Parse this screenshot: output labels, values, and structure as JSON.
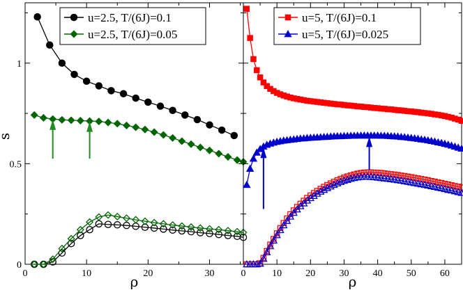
{
  "chart_data": [
    {
      "type": "line",
      "panel": "left",
      "xlabel": "ρ",
      "ylabel": "s",
      "xlim": [
        0,
        35.5
      ],
      "ylim": [
        0,
        1.3
      ],
      "xticks": [
        0,
        10,
        20,
        30
      ],
      "yticks": [
        0,
        0.5,
        1
      ],
      "ytick_labels": [
        "0",
        "0.5",
        "1"
      ],
      "legend_position": "top-right",
      "series": [
        {
          "name": "u=2.5, T/(6J)=0.1",
          "legend": true,
          "color": "#000000",
          "marker": "circle",
          "filled": true,
          "x": [
            2,
            4,
            6,
            8,
            10,
            12,
            14,
            16,
            18,
            20,
            22,
            24,
            26,
            28,
            30,
            32,
            34
          ],
          "y": [
            1.23,
            1.09,
            1.0,
            0.944,
            0.91,
            0.887,
            0.863,
            0.848,
            0.826,
            0.806,
            0.786,
            0.765,
            0.742,
            0.719,
            0.693,
            0.667,
            0.64
          ]
        },
        {
          "name": "u=2.5, T/(6J)=0.05",
          "legend": true,
          "color": "#006400",
          "marker": "diamond",
          "filled": true,
          "x": [
            1.5,
            3,
            4.5,
            6,
            7.5,
            9,
            10.5,
            12,
            13.5,
            15,
            16.5,
            18,
            19.5,
            21,
            22.5,
            24,
            25.5,
            27,
            28.5,
            30,
            31.5,
            33,
            34.5,
            35.5
          ],
          "y": [
            0.742,
            0.728,
            0.722,
            0.718,
            0.716,
            0.714,
            0.712,
            0.71,
            0.705,
            0.699,
            0.69,
            0.681,
            0.67,
            0.657,
            0.643,
            0.628,
            0.612,
            0.597,
            0.581,
            0.566,
            0.55,
            0.534,
            0.518,
            0.509
          ]
        },
        {
          "name": "u=2.5, T/(6J)=0.1 (open)",
          "legend": false,
          "color": "#000000",
          "marker": "circle",
          "filled": false,
          "x": [
            1.5,
            3,
            4.5,
            6,
            7.5,
            9,
            10.5,
            12,
            13.5,
            15,
            16.5,
            18,
            19.5,
            21,
            22.5,
            24,
            25.5,
            27,
            28.5,
            30,
            31.5,
            33,
            34.5,
            35.5
          ],
          "y": [
            0,
            0,
            0.012,
            0.056,
            0.103,
            0.143,
            0.172,
            0.201,
            0.198,
            0.196,
            0.193,
            0.189,
            0.184,
            0.18,
            0.175,
            0.17,
            0.166,
            0.162,
            0.157,
            0.153,
            0.148,
            0.143,
            0.139,
            0.134
          ]
        },
        {
          "name": "u=2.5, T/(6J)=0.05 (open)",
          "legend": false,
          "color": "#006400",
          "marker": "diamond",
          "filled": false,
          "x": [
            1.5,
            3,
            4.5,
            6,
            7.5,
            9,
            10.5,
            12,
            13.5,
            15,
            16.5,
            18,
            19.5,
            21,
            22.5,
            24,
            25.5,
            27,
            28.5,
            30,
            31.5,
            33,
            34.5,
            35.5
          ],
          "y": [
            0,
            0,
            0.025,
            0.078,
            0.127,
            0.172,
            0.21,
            0.235,
            0.245,
            0.237,
            0.229,
            0.221,
            0.214,
            0.207,
            0.201,
            0.195,
            0.19,
            0.185,
            0.18,
            0.176,
            0.172,
            0.167,
            0.162,
            0.158
          ]
        }
      ],
      "arrows": [
        {
          "color": "#228B22",
          "x": 4.5,
          "y_from": 0.525,
          "y_to": 0.72
        },
        {
          "color": "#228B22",
          "x": 10.5,
          "y_from": 0.525,
          "y_to": 0.71
        }
      ]
    },
    {
      "type": "line",
      "panel": "right",
      "xlabel": "ρ",
      "xlim": [
        0,
        65
      ],
      "ylim": [
        0,
        1.3
      ],
      "xticks": [
        0,
        10,
        20,
        30,
        40,
        50,
        60
      ],
      "legend_position": "top-left",
      "series": [
        {
          "name": "u=5, T/(6J)=0.1",
          "legend": true,
          "color": "#ff0000",
          "marker": "square",
          "filled": true,
          "x": [
            1,
            2,
            3,
            4,
            5,
            6,
            7,
            8,
            9,
            10,
            11,
            12,
            13,
            14,
            15,
            16,
            17,
            18,
            19,
            20,
            21,
            22,
            23,
            24,
            25,
            26,
            27,
            28,
            29,
            30,
            31,
            32,
            33,
            34,
            35,
            36,
            37,
            38,
            39,
            40,
            41,
            42,
            43,
            44,
            45,
            46,
            47,
            48,
            49,
            50,
            51,
            52,
            53,
            54,
            55,
            56,
            57,
            58,
            59,
            60,
            61,
            62,
            63,
            64,
            65
          ],
          "y": [
            1.27,
            1.125,
            1.02,
            0.965,
            0.929,
            0.904,
            0.886,
            0.872,
            0.861,
            0.852,
            0.845,
            0.839,
            0.834,
            0.829,
            0.825,
            0.822,
            0.819,
            0.816,
            0.813,
            0.811,
            0.809,
            0.807,
            0.805,
            0.803,
            0.801,
            0.799,
            0.797,
            0.795,
            0.794,
            0.792,
            0.79,
            0.789,
            0.787,
            0.785,
            0.784,
            0.782,
            0.781,
            0.779,
            0.777,
            0.776,
            0.774,
            0.773,
            0.771,
            0.77,
            0.768,
            0.766,
            0.765,
            0.763,
            0.761,
            0.76,
            0.758,
            0.756,
            0.754,
            0.752,
            0.75,
            0.748,
            0.745,
            0.743,
            0.74,
            0.737,
            0.733,
            0.729,
            0.724,
            0.719,
            0.713
          ]
        },
        {
          "name": "u=5, T/(6J)=0.025",
          "legend": true,
          "color": "#0000cd",
          "marker": "triangle",
          "filled": true,
          "x": [
            1,
            2,
            3,
            4,
            5,
            6,
            7,
            8,
            9,
            10,
            11,
            12,
            13,
            14,
            15,
            16,
            17,
            18,
            19,
            20,
            21,
            22,
            23,
            24,
            25,
            26,
            27,
            28,
            29,
            30,
            31,
            32,
            33,
            34,
            35,
            36,
            37,
            38,
            39,
            40,
            41,
            42,
            43,
            44,
            45,
            46,
            47,
            48,
            49,
            50,
            51,
            52,
            53,
            54,
            55,
            56,
            57,
            58,
            59,
            60,
            61,
            62,
            63,
            64,
            65
          ],
          "y": [
            0.395,
            0.475,
            0.525,
            0.555,
            0.573,
            0.585,
            0.594,
            0.6,
            0.605,
            0.609,
            0.612,
            0.615,
            0.617,
            0.619,
            0.621,
            0.623,
            0.625,
            0.626,
            0.628,
            0.629,
            0.63,
            0.631,
            0.632,
            0.633,
            0.634,
            0.635,
            0.636,
            0.637,
            0.637,
            0.638,
            0.638,
            0.639,
            0.639,
            0.64,
            0.64,
            0.64,
            0.64,
            0.64,
            0.64,
            0.64,
            0.639,
            0.639,
            0.638,
            0.637,
            0.636,
            0.635,
            0.633,
            0.632,
            0.63,
            0.628,
            0.626,
            0.624,
            0.621,
            0.619,
            0.616,
            0.613,
            0.61,
            0.606,
            0.603,
            0.599,
            0.595,
            0.59,
            0.585,
            0.58,
            0.575
          ]
        },
        {
          "name": "u=5, T/(6J)=0.1 (open)",
          "legend": false,
          "color": "#ff0000",
          "marker": "square",
          "filled": false,
          "x": [
            1,
            2,
            3,
            4,
            5,
            6,
            7,
            8,
            9,
            10,
            11,
            12,
            13,
            14,
            15,
            16,
            17,
            18,
            19,
            20,
            21,
            22,
            23,
            24,
            25,
            26,
            27,
            28,
            29,
            30,
            31,
            32,
            33,
            34,
            35,
            36,
            37,
            38,
            39,
            40,
            41,
            42,
            43,
            44,
            45,
            46,
            47,
            48,
            49,
            50,
            51,
            52,
            53,
            54,
            55,
            56,
            57,
            58,
            59,
            60,
            61,
            62,
            63,
            64,
            65
          ],
          "y": [
            0,
            0,
            0,
            0,
            0.005,
            0.032,
            0.066,
            0.098,
            0.126,
            0.154,
            0.18,
            0.205,
            0.228,
            0.249,
            0.268,
            0.285,
            0.301,
            0.316,
            0.33,
            0.342,
            0.354,
            0.365,
            0.375,
            0.385,
            0.394,
            0.402,
            0.41,
            0.418,
            0.425,
            0.431,
            0.437,
            0.442,
            0.447,
            0.451,
            0.454,
            0.456,
            0.457,
            0.457,
            0.456,
            0.455,
            0.454,
            0.452,
            0.45,
            0.448,
            0.446,
            0.444,
            0.441,
            0.439,
            0.436,
            0.433,
            0.43,
            0.427,
            0.424,
            0.421,
            0.418,
            0.414,
            0.411,
            0.407,
            0.404,
            0.4,
            0.397,
            0.393,
            0.389,
            0.386,
            0.382
          ]
        },
        {
          "name": "u=5, T/(6J)=0.025 (open)",
          "legend": false,
          "color": "#0000cd",
          "marker": "triangle",
          "filled": false,
          "x": [
            1,
            2,
            3,
            4,
            5,
            6,
            7,
            8,
            9,
            10,
            11,
            12,
            13,
            14,
            15,
            16,
            17,
            18,
            19,
            20,
            21,
            22,
            23,
            24,
            25,
            26,
            27,
            28,
            29,
            30,
            31,
            32,
            33,
            34,
            35,
            36,
            37,
            38,
            39,
            40,
            41,
            42,
            43,
            44,
            45,
            46,
            47,
            48,
            49,
            50,
            51,
            52,
            53,
            54,
            55,
            56,
            57,
            58,
            59,
            60,
            61,
            62,
            63,
            64,
            65
          ],
          "y": [
            0,
            0,
            0,
            0,
            0.003,
            0.027,
            0.06,
            0.09,
            0.118,
            0.145,
            0.17,
            0.194,
            0.216,
            0.237,
            0.256,
            0.273,
            0.289,
            0.303,
            0.317,
            0.329,
            0.34,
            0.351,
            0.361,
            0.37,
            0.379,
            0.387,
            0.395,
            0.402,
            0.409,
            0.415,
            0.42,
            0.425,
            0.429,
            0.432,
            0.434,
            0.435,
            0.435,
            0.434,
            0.433,
            0.431,
            0.429,
            0.427,
            0.425,
            0.423,
            0.421,
            0.418,
            0.416,
            0.413,
            0.41,
            0.407,
            0.404,
            0.401,
            0.398,
            0.395,
            0.392,
            0.388,
            0.385,
            0.381,
            0.378,
            0.374,
            0.37,
            0.367,
            0.363,
            0.359,
            0.355
          ]
        }
      ],
      "arrows": [
        {
          "color": "#0000cd",
          "x": 6,
          "y_from": 0.275,
          "y_to": 0.58
        },
        {
          "color": "#0000cd",
          "x": 37.5,
          "y_from": 0.47,
          "y_to": 0.635
        }
      ]
    }
  ]
}
